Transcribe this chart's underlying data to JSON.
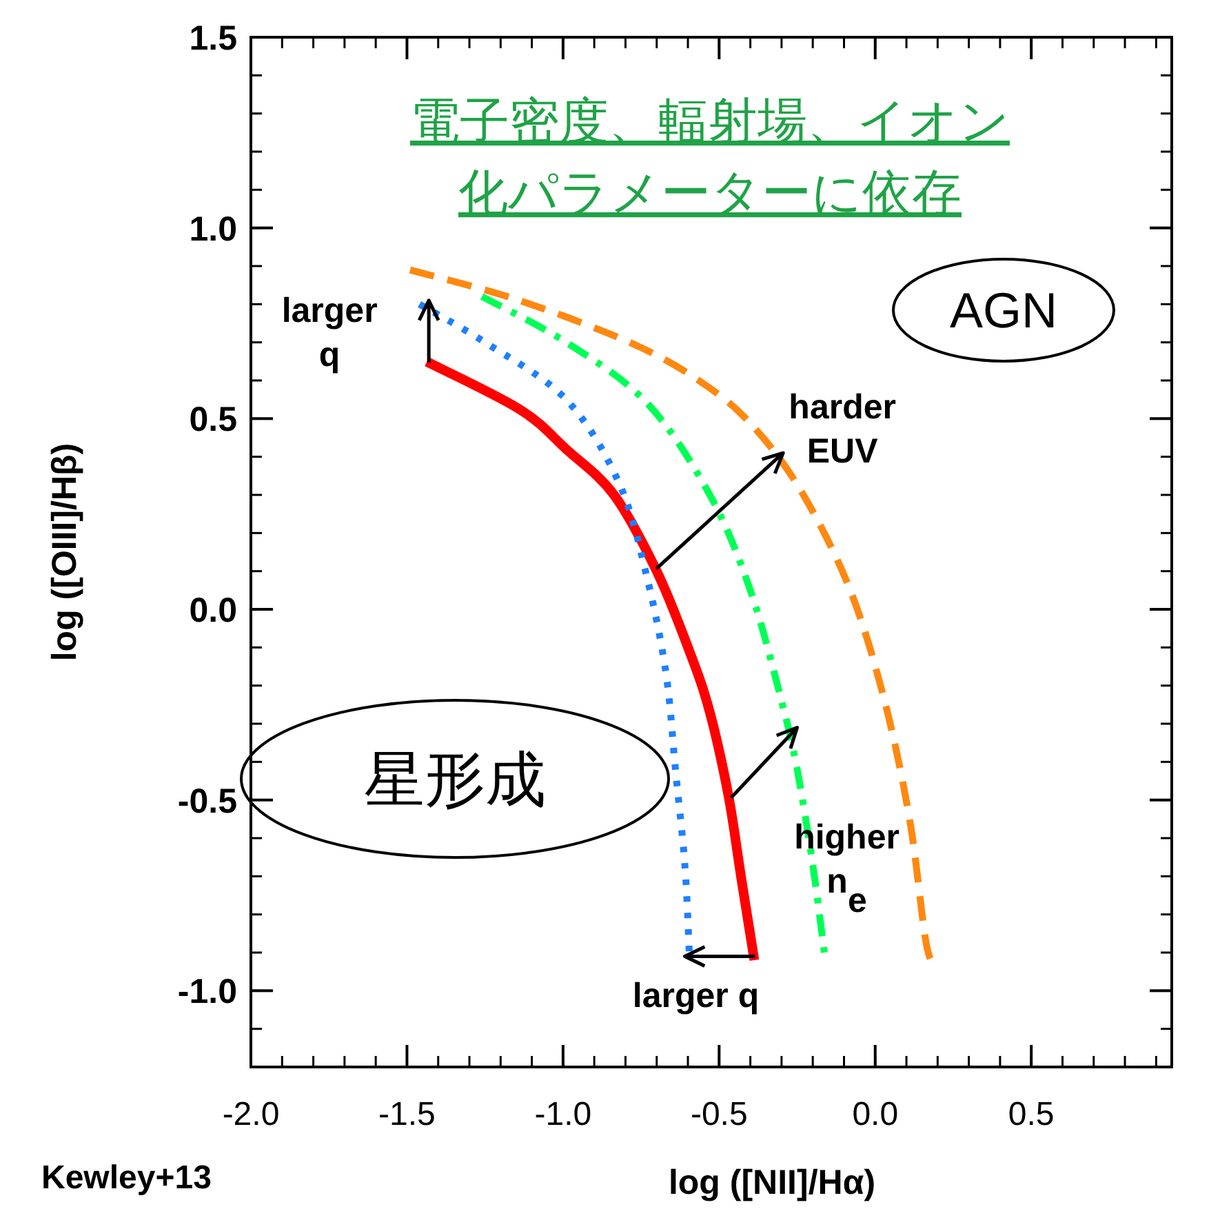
{
  "chart_data": {
    "type": "line",
    "title": "電子密度、輻射場、イオン化パラメーターに依存",
    "xlabel": "log ([NII]/Hα)",
    "ylabel": "log ([OIII]/Hβ)",
    "xlim": [
      -2.0,
      0.95
    ],
    "ylim": [
      -1.2,
      1.5
    ],
    "xticks": [
      {
        "value": -2,
        "label": "-2.0"
      },
      -1.5,
      {
        "value": -1,
        "label": "-1.0"
      },
      -0.5,
      {
        "value": 0,
        "label": "0.0"
      },
      0.5
    ],
    "yticks": [
      {
        "value": -1,
        "label": "-1.0"
      },
      -0.5,
      {
        "value": 0,
        "label": "0.0"
      },
      0.5,
      {
        "value": 1,
        "label": "1.0"
      },
      1.5
    ],
    "tick_labels": "xy",
    "grid": false,
    "series": [
      {
        "color": "#ff0000",
        "line_style": "solid",
        "x": [
          -1.436,
          -1.14,
          -0.99,
          -0.837,
          -0.7,
          -0.595,
          -0.53,
          -0.47,
          -0.43,
          -0.387
        ],
        "values": [
          0.649,
          0.525,
          0.42,
          0.3,
          0.1,
          -0.11,
          -0.27,
          -0.49,
          -0.7,
          -0.92
        ]
      },
      {
        "color": "#1e7fff",
        "line_style": "dotted",
        "x": [
          -1.46,
          -1.25,
          -0.99,
          -0.82,
          -0.73,
          -0.67,
          -0.64,
          -0.61,
          -0.595
        ],
        "values": [
          0.8,
          0.7,
          0.55,
          0.33,
          0.08,
          -0.17,
          -0.42,
          -0.67,
          -0.91
        ]
      },
      {
        "color": "#00ff55",
        "line_style": "dashdot",
        "x": [
          -1.26,
          -0.99,
          -0.73,
          -0.53,
          -0.4,
          -0.3,
          -0.25,
          -0.2,
          -0.16
        ],
        "values": [
          0.82,
          0.7,
          0.54,
          0.3,
          0.05,
          -0.24,
          -0.42,
          -0.67,
          -0.92
        ]
      },
      {
        "color": "#ff8811",
        "line_style": "dashed",
        "x": [
          -1.49,
          -1.14,
          -0.76,
          -0.53,
          -0.38,
          -0.23,
          -0.08,
          0.03,
          0.11,
          0.16,
          0.185
        ],
        "values": [
          0.89,
          0.81,
          0.69,
          0.58,
          0.47,
          0.3,
          0.05,
          -0.24,
          -0.55,
          -0.86,
          -0.93
        ]
      }
    ],
    "annotations": [
      "Kewley+13",
      "AGN",
      "星形成",
      {
        "text": "larger\nq",
        "x": -1.43,
        "y": 0.81
      },
      {
        "text": "harder\nEUV",
        "x": -0.295,
        "y": 0.41
      },
      {
        "text": "higher\nn$_{e}$",
        "x": -0.25,
        "y": -0.31
      },
      {
        "text": "larger q",
        "x": -0.61,
        "y": -0.91
      }
    ]
  }
}
